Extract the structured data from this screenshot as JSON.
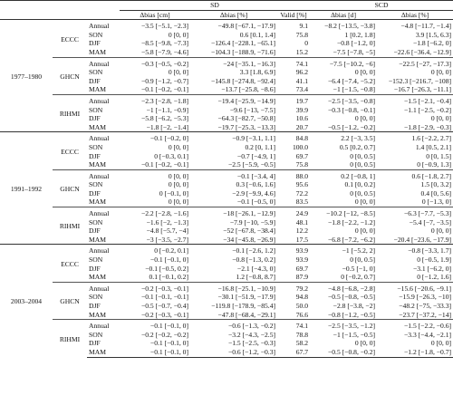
{
  "header": {
    "groups": [
      "SD",
      "SCD"
    ],
    "columns": [
      "Δbias [cm]",
      "Δbias [%]",
      "Valid [%]",
      "Δbias [d]",
      "Δbias [%]"
    ]
  },
  "periods": [
    {
      "label": "1977–1980",
      "datasets": [
        {
          "name": "ECCC",
          "rows": [
            [
              "Annual",
              "−3.5 [−5.1, −2.3]",
              "−49.8 [−67.1, −17.9]",
              "9.1",
              "−8.2 [−13.5, −3.8]",
              "−4.8 [−11.7, −1.4]"
            ],
            [
              "SON",
              "0 [0, 0]",
              "0.6 [0.1, 1.4]",
              "75.8",
              "1 [0.2, 1.8]",
              "3.9 [1.5, 6.3]"
            ],
            [
              "DJF",
              "−8.5 [−9.8, −7.3]",
              "−126.4 [−228.1, −65.1]",
              "0",
              "−0.8 [−1.2, 0]",
              "−1.8 [−6.2, 0]"
            ],
            [
              "MAM",
              "−5.8 [−7.9, −4.6]",
              "−104.3 [−188.9, −71.6]",
              "15.2",
              "−7.5 [−7.8, −5]",
              "−22.6 [−36.4, −12.9]"
            ]
          ]
        },
        {
          "name": "GHCN",
          "rows": [
            [
              "Annual",
              "−0.3 [−0.5, −0.2]",
              "−24 [−35.1, −16.3]",
              "74.1",
              "−7.5 [−10.2, −6]",
              "−22.5 [−27, −17.3]"
            ],
            [
              "SON",
              "0 [0, 0]",
              "3.3 [1.8, 6.9]",
              "96.2",
              "0 [0, 0]",
              "0 [0, 0]"
            ],
            [
              "DJF",
              "−0.9 [−1.2, −0.7]",
              "−145.8 [−274.8, −92.4]",
              "41.1",
              "−6.4 [−7.4, −5.2]",
              "−152.3 [−216.7, −108]"
            ],
            [
              "MAM",
              "−0.1 [−0.2, −0.1]",
              "−13.7 [−25.8, −8.6]",
              "73.4",
              "−1 [−1.5, −0.8]",
              "−16.7 [−26.3, −11.1]"
            ]
          ]
        },
        {
          "name": "RIHMI",
          "rows": [
            [
              "Annual",
              "−2.3 [−2.8, −1.8]",
              "−19.4 [−25.9, −14.9]",
              "19.7",
              "−2.5 [−3.5, −0.8]",
              "−1.5 [−2.1, −0.4]"
            ],
            [
              "SON",
              "−1 [−1.1, −0.9]",
              "−9.6 [−13, −7.5]",
              "39.9",
              "−0.3 [−0.8, −0.1]",
              "−1.1 [−2.5, −0.2]"
            ],
            [
              "DJF",
              "−5.8 [−6.2, −5.3]",
              "−64.3 [−82.7, −50.8]",
              "10.6",
              "0 [0, 0]",
              "0 [0, 0]"
            ],
            [
              "MAM",
              "−1.8 [−2, −1.4]",
              "−19.7 [−25.3, −13.3]",
              "20.7",
              "−0.5 [−1.2, −0.2]",
              "−1.8 [−2.9, −0.3]"
            ]
          ]
        }
      ]
    },
    {
      "label": "1991–1992",
      "datasets": [
        {
          "name": "ECCC",
          "rows": [
            [
              "Annual",
              "−0.1 [−0.2, 0]",
              "−0.9 [−3.1, 1.1]",
              "84.8",
              "2.2 [−3, 3.5]",
              "1.6 [−2.2, 2.7]"
            ],
            [
              "SON",
              "0 [0, 0]",
              "0.2 [0, 1.1]",
              "100.0",
              "0.5 [0.2, 0.7]",
              "1.4 [0.5, 2.1]"
            ],
            [
              "DJF",
              "0 [−0.3, 0.1]",
              "−0.7 [−4.9, 1]",
              "69.7",
              "0 [0, 0.5]",
              "0 [0, 1.5]"
            ],
            [
              "MAM",
              "−0.1 [−0.2, −0.1]",
              "−2.5 [−5.9, −0.5]",
              "75.8",
              "0 [0, 0.5]",
              "0 [−0.9, 1.3]"
            ]
          ]
        },
        {
          "name": "GHCN",
          "rows": [
            [
              "Annual",
              "0 [0, 0]",
              "−0.1 [−3.4, 4]",
              "88.0",
              "0.2 [−0.8, 1]",
              "0.6 [−1.8, 2.7]"
            ],
            [
              "SON",
              "0 [0, 0]",
              "0.3 [−0.6, 1.6]",
              "95.6",
              "0.1 [0, 0.2]",
              "1.5 [0, 3.2]"
            ],
            [
              "DJF",
              "0 [−0.1, 0]",
              "−2.9 [−9.9, 4.6]",
              "72.2",
              "0 [0, 0.5]",
              "0.4 [0, 5.6]"
            ],
            [
              "MAM",
              "0 [0, 0]",
              "−0.1 [−0.5, 0]",
              "83.5",
              "0 [0, 0]",
              "0 [−1.3, 0]"
            ]
          ]
        },
        {
          "name": "RIHMI",
          "rows": [
            [
              "Annual",
              "−2.2 [−2.8, −1.6]",
              "−18 [−26.1, −12.9]",
              "24.9",
              "−10.2 [−12, −8.5]",
              "−6.3 [−7.7, −5.3]"
            ],
            [
              "SON",
              "−1.6 [−2, −1.3]",
              "−7.9 [−10, −5.9]",
              "48.1",
              "−1.8 [−2.2, −1.2]",
              "−5.4 [−7, −3.5]"
            ],
            [
              "DJF",
              "−4.8 [−5.7, −4]",
              "−52 [−67.8, −38.4]",
              "12.2",
              "0 [0, 0]",
              "0 [0, 0]"
            ],
            [
              "MAM",
              "−3 [−3.5, −2.7]",
              "−34 [−45.8, −26.9]",
              "17.5",
              "−6.8 [−7.2, −6.2]",
              "−20.4 [−23.6, −17.9]"
            ]
          ]
        }
      ]
    },
    {
      "label": "2003–2004",
      "datasets": [
        {
          "name": "ECCC",
          "rows": [
            [
              "Annual",
              "0 [−0.2, 0.1]",
              "−0.1 [−2.6, 1.2]",
              "93.9",
              "−1 [−5.2, 2]",
              "−0.8 [−3.3, 1.7]"
            ],
            [
              "SON",
              "−0.1 [−0.1, 0]",
              "−0.8 [−1.3, 0.2]",
              "93.9",
              "0 [0, 0.5]",
              "0 [−0.5, 1.9]"
            ],
            [
              "DJF",
              "−0.1 [−0.5, 0.2]",
              "−2.1 [−4.3, 0]",
              "69.7",
              "−0.5 [−1, 0]",
              "−3.1 [−6.2, 0]"
            ],
            [
              "MAM",
              "0.1 [−0.1, 0.2]",
              "1.2 [−0.8, 8.7]",
              "87.9",
              "0 [−0.2, 0.7]",
              "0 [−1.2, 1.6]"
            ]
          ]
        },
        {
          "name": "GHCN",
          "rows": [
            [
              "Annual",
              "−0.2 [−0.3, −0.1]",
              "−16.8 [−25.1, −10.9]",
              "79.2",
              "−4.8 [−6.8, −2.8]",
              "−15.6 [−20.6, −9.1]"
            ],
            [
              "SON",
              "−0.1 [−0.1, −0.1]",
              "−30.1 [−51.9, −17.9]",
              "94.8",
              "−0.5 [−0.8, −0.5]",
              "−15.9 [−26.3, −10]"
            ],
            [
              "DJF",
              "−0.5 [−0.7, −0.4]",
              "−119.8 [−178.9, −85.4]",
              "50.0",
              "−2.8 [−3.8, −2]",
              "−48.2 [−75, −33.3]"
            ],
            [
              "MAM",
              "−0.2 [−0.3, −0.1]",
              "−47.8 [−68.4, −29.1]",
              "76.6",
              "−0.8 [−1.2, −0.5]",
              "−23.7 [−37.2, −14]"
            ]
          ]
        },
        {
          "name": "RIHMI",
          "rows": [
            [
              "Annual",
              "−0.1 [−0.1, 0]",
              "−0.6 [−1.3, −0.2]",
              "74.1",
              "−2.5 [−3.5, −1.2]",
              "−1.5 [−2.2, −0.6]"
            ],
            [
              "SON",
              "−0.2 [−0.2, −0.2]",
              "−3.2 [−4.3, −2.5]",
              "78.8",
              "−1 [−1.5, −0.5]",
              "−3.3 [−4.4, −2.1]"
            ],
            [
              "DJF",
              "−0.1 [−0.1, 0]",
              "−1.5 [−2.5, −0.3]",
              "58.2",
              "0 [0, 0]",
              "0 [0, 0]"
            ],
            [
              "MAM",
              "−0.1 [−0.1, 0]",
              "−0.6 [−1.2, −0.3]",
              "67.7",
              "−0.5 [−0.8, −0.2]",
              "−1.2 [−1.8, −0.7]"
            ]
          ]
        }
      ]
    }
  ]
}
